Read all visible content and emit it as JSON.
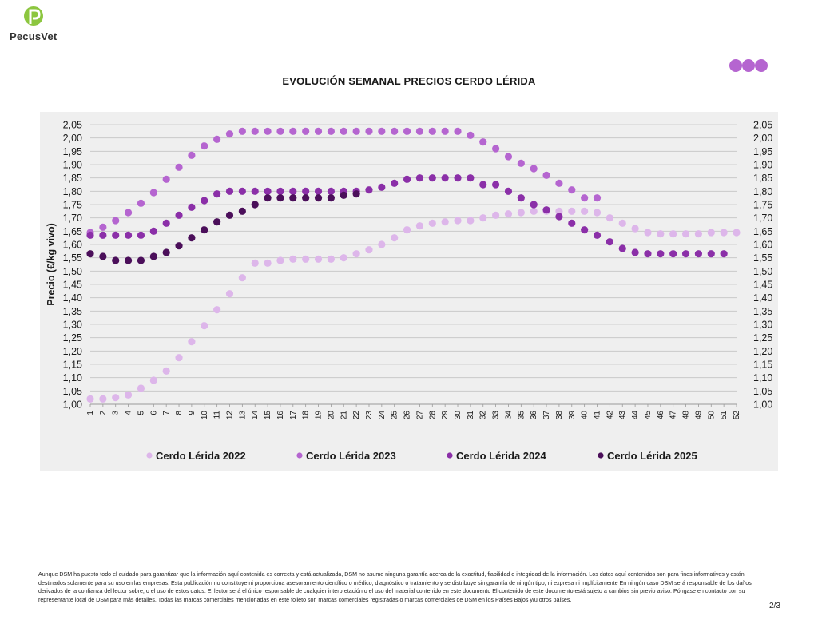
{
  "brand": {
    "name": "PecusVet",
    "logo_letter": "P",
    "logo_color": "#8cc63f"
  },
  "header": {
    "title": "EVOLUCIÓN SEMANAL PRECIOS CERDO LÉRIDA",
    "dots_color": "#b565d0"
  },
  "footer": {
    "disclaimer": "Aunque DSM ha puesto todo el cuidado para garantizar que la información aquí contenida es correcta y está actualizada, DSM no asume ninguna garantía acerca de la exactitud, fiabilidad o integridad de la información. Los datos aquí contenidos son para fines informativos y están destinados solamente para su uso en las empresas. Esta publicación no constituye ni proporciona asesoramiento científico o médico, diagnóstico o tratamiento y se distribuye sin garantía de ningún tipo, ni expresa ni implícitamente En ningún caso DSM será responsable de los daños derivados de la confianza del lector sobre, o el uso de estos datos. El lector será el único responsable de cualquier interpretación o el uso del material contenido en este documento El contenido de este documento está sujeto a cambios sin previo aviso. Póngase en contacto con su representante local de DSM para más detalles. Todas las marcas comerciales mencionadas en este folleto son marcas comerciales registradas o marcas comerciales de DSM en los Países Bajos y/u otros países.",
    "page": "2/3"
  },
  "chart_data": {
    "type": "scatter",
    "title": "EVOLUCIÓN SEMANAL PRECIOS CERDO LÉRIDA",
    "xlabel": "",
    "ylabel": "Precio (€/kg vivo)",
    "ylim": [
      1.0,
      2.05
    ],
    "ytick_step": 0.05,
    "yticks_both_sides": true,
    "grid": true,
    "legend_position": "bottom",
    "x": [
      1,
      2,
      3,
      4,
      5,
      6,
      7,
      8,
      9,
      10,
      11,
      12,
      13,
      14,
      15,
      16,
      17,
      18,
      19,
      20,
      21,
      22,
      23,
      24,
      25,
      26,
      27,
      28,
      29,
      30,
      31,
      32,
      33,
      34,
      35,
      36,
      37,
      38,
      39,
      40,
      41,
      42,
      43,
      44,
      45,
      46,
      47,
      48,
      49,
      50,
      51,
      52
    ],
    "series": [
      {
        "name": "Cerdo Lérida 2022",
        "color": "#ddb6ea",
        "values": [
          1.02,
          1.02,
          1.025,
          1.035,
          1.06,
          1.09,
          1.125,
          1.175,
          1.235,
          1.295,
          1.355,
          1.415,
          1.475,
          1.53,
          1.53,
          1.54,
          1.545,
          1.545,
          1.545,
          1.545,
          1.55,
          1.565,
          1.58,
          1.6,
          1.625,
          1.655,
          1.67,
          1.68,
          1.685,
          1.69,
          1.69,
          1.7,
          1.71,
          1.715,
          1.72,
          1.725,
          1.725,
          1.725,
          1.725,
          1.725,
          1.72,
          1.7,
          1.68,
          1.66,
          1.645,
          1.64,
          1.64,
          1.64,
          1.64,
          1.645,
          1.645,
          1.645
        ]
      },
      {
        "name": "Cerdo Lérida 2023",
        "color": "#b565d0",
        "values": [
          1.645,
          1.665,
          1.69,
          1.72,
          1.755,
          1.795,
          1.845,
          1.89,
          1.935,
          1.97,
          1.995,
          2.015,
          2.025,
          2.025,
          2.025,
          2.025,
          2.025,
          2.025,
          2.025,
          2.025,
          2.025,
          2.025,
          2.025,
          2.025,
          2.025,
          2.025,
          2.025,
          2.025,
          2.025,
          2.025,
          2.01,
          1.985,
          1.96,
          1.93,
          1.905,
          1.885,
          1.86,
          1.83,
          1.805,
          1.775,
          1.775,
          null,
          null,
          null,
          null,
          null,
          null,
          null,
          null,
          null,
          null,
          null
        ]
      },
      {
        "name": "Cerdo Lérida 2024",
        "color": "#8b2fa8",
        "values": [
          1.635,
          1.635,
          1.635,
          1.635,
          1.635,
          1.65,
          1.68,
          1.71,
          1.74,
          1.765,
          1.79,
          1.8,
          1.8,
          1.8,
          1.8,
          1.8,
          1.8,
          1.8,
          1.8,
          1.8,
          1.8,
          1.8,
          1.805,
          1.815,
          1.83,
          1.845,
          1.85,
          1.85,
          1.85,
          1.85,
          1.85,
          1.825,
          1.825,
          1.8,
          1.775,
          1.75,
          1.73,
          1.705,
          1.68,
          1.655,
          1.635,
          1.61,
          1.585,
          1.57,
          1.565,
          1.565,
          1.565,
          1.565,
          1.565,
          1.565,
          1.565,
          null
        ]
      },
      {
        "name": "Cerdo Lérida 2025",
        "color": "#4b0f5a",
        "values": [
          1.565,
          1.555,
          1.54,
          1.54,
          1.54,
          1.555,
          1.57,
          1.595,
          1.625,
          1.655,
          1.685,
          1.71,
          1.725,
          1.75,
          1.775,
          1.775,
          1.775,
          1.775,
          1.775,
          1.775,
          1.785,
          1.79,
          null,
          null,
          null,
          null,
          null,
          null,
          null,
          null,
          null,
          null,
          null,
          null,
          null,
          null,
          null,
          null,
          null,
          null,
          null,
          null,
          null,
          null,
          null,
          null,
          null,
          null,
          null,
          null,
          null,
          null
        ]
      }
    ]
  }
}
